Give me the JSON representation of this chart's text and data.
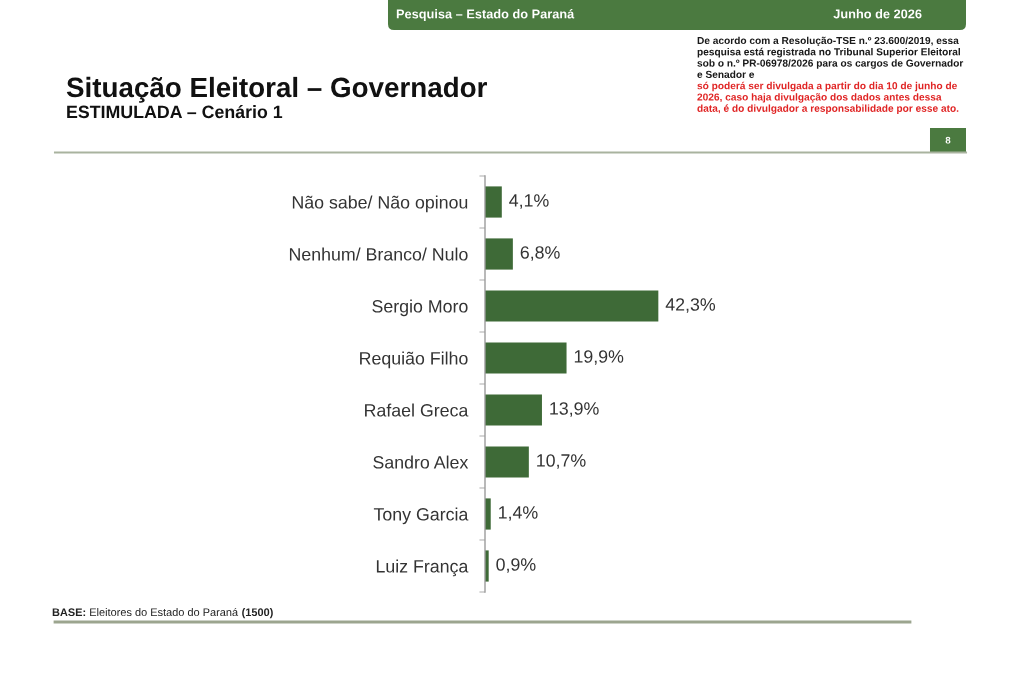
{
  "chart_data": {
    "type": "bar",
    "orientation": "horizontal",
    "title": "Situação Eleitoral – Governador",
    "subtitle": "ESTIMULADA – Cenário 1",
    "categories": [
      "Não sabe/ Não opinou",
      "Nenhum/ Branco/ Nulo",
      "Sergio Moro",
      "Requião Filho",
      "Rafael Greca",
      "Sandro Alex",
      "Tony Garcia",
      "Luiz França"
    ],
    "values": [
      4.1,
      6.8,
      42.3,
      19.9,
      13.9,
      10.7,
      1.4,
      0.9
    ],
    "value_labels": [
      "4,1%",
      "6,8%",
      "42,3%",
      "19,9%",
      "13,9%",
      "10,7%",
      "1,4%",
      "0,9%"
    ],
    "color": "#3e6a37",
    "tick_labels": "y",
    "annotations": [
      "Pesquisa – Estado do Paraná",
      "Junho de 2026",
      "De acordo com a Resolução-TSE n.º 23.600/2019, essa pesquisa está registrada no Tribunal Superior Eleitoral sob o n.º PR-06978/2026 para os cargos de Governador e Senador e",
      "só poderá ser divulgada a partir do dia 10 de junho de 2026, caso haja divulgação dos dados antes dessa data, é do divulgador a responsabilidade por esse ato.",
      "8",
      "BASE: Eleitores do Estado do Paraná (1500)"
    ]
  }
}
